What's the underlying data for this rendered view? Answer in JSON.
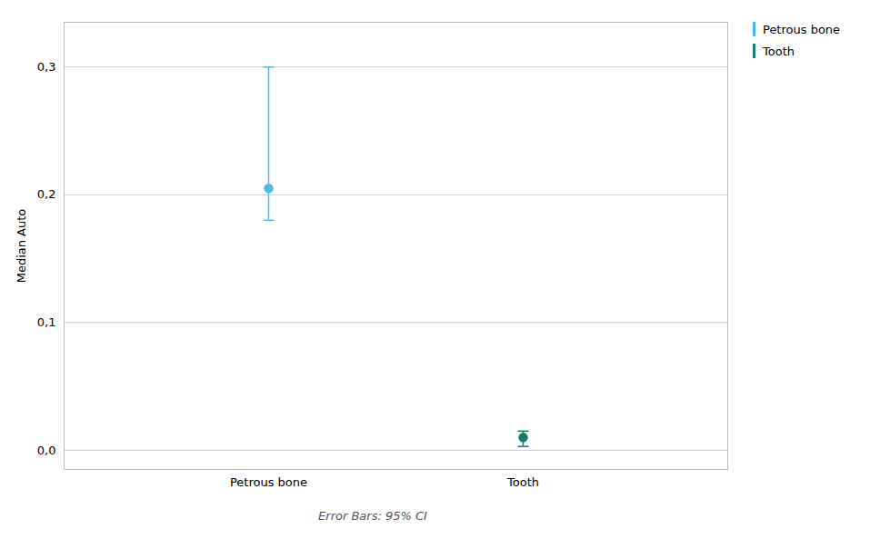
{
  "chart_data": {
    "type": "errorbar",
    "ylabel": "Median Auto",
    "caption": "Error Bars: 95% CI",
    "categories": [
      "Petrous bone",
      "Tooth"
    ],
    "values": [
      0.205,
      0.01
    ],
    "ci_lower": [
      0.18,
      0.003
    ],
    "ci_upper": [
      0.3,
      0.015
    ],
    "colors": [
      "#4db8f0",
      "#1a7a6e"
    ],
    "ylim": [
      -0.015,
      0.335
    ],
    "yticks": [
      {
        "value": 0.0,
        "label": "0,0"
      },
      {
        "value": 0.1,
        "label": "0,1"
      },
      {
        "value": 0.2,
        "label": "0,2"
      },
      {
        "value": 0.3,
        "label": "0,3"
      }
    ],
    "grid": true,
    "legend": "upper right"
  }
}
